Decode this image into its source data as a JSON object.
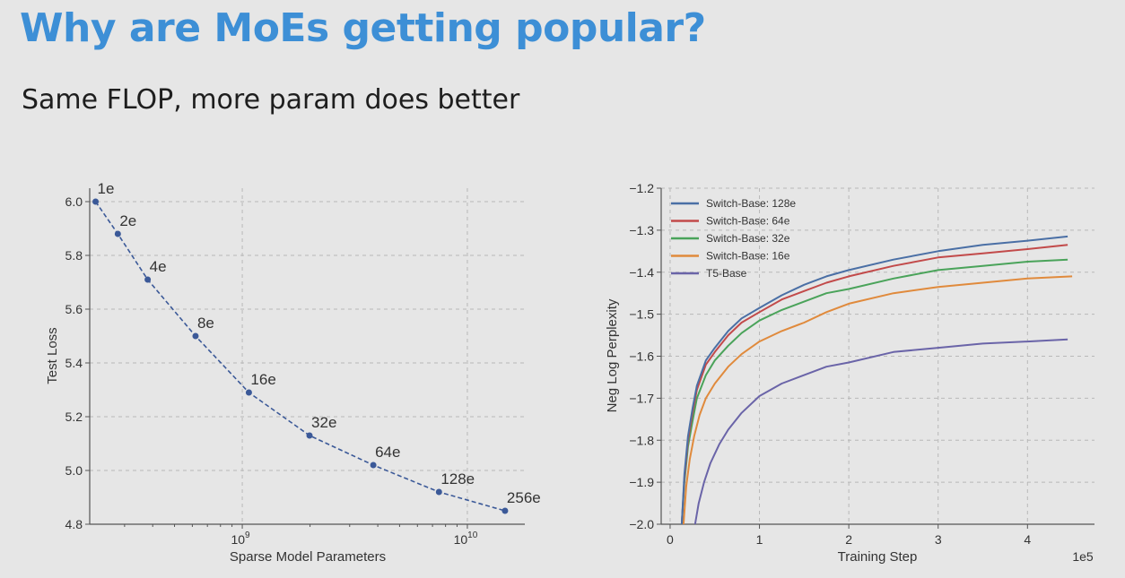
{
  "slide": {
    "title": "Why are MoEs getting popular?",
    "subtitle": "Same FLOP, more param does better"
  },
  "chart_data": [
    {
      "type": "line",
      "xlabel": "Sparse Model Parameters",
      "ylabel": "Test Loss",
      "xscale": "log",
      "xlim": [
        210000000,
        18000000000
      ],
      "ylim": [
        4.8,
        6.05
      ],
      "yticks": [
        "6.0",
        "5.8",
        "5.6",
        "5.4",
        "5.2",
        "5.0",
        "4.8"
      ],
      "xtick_labels": [
        {
          "base": "10",
          "exp": "9",
          "value": 1000000000
        },
        {
          "base": "10",
          "exp": "10",
          "value": 10000000000
        }
      ],
      "grid": true,
      "line_style": "dashed",
      "color": "#3b5998",
      "points": [
        {
          "label": "1e",
          "x": 223000000,
          "y": 6.0
        },
        {
          "label": "2e",
          "x": 280000000,
          "y": 5.88
        },
        {
          "label": "4e",
          "x": 380000000,
          "y": 5.71
        },
        {
          "label": "8e",
          "x": 620000000,
          "y": 5.5
        },
        {
          "label": "16e",
          "x": 1070000000,
          "y": 5.29
        },
        {
          "label": "32e",
          "x": 1990000000,
          "y": 5.13
        },
        {
          "label": "64e",
          "x": 3820000000,
          "y": 5.02
        },
        {
          "label": "128e",
          "x": 7480000000,
          "y": 4.92
        },
        {
          "label": "256e",
          "x": 14700000000,
          "y": 4.85
        }
      ]
    },
    {
      "type": "line",
      "xlabel": "Training Step",
      "ylabel": "Neg Log Perplexity",
      "x_multiplier_label": "1e5",
      "xlim": [
        -0.1,
        4.75
      ],
      "ylim": [
        -2.0,
        -1.2
      ],
      "xticks": [
        "0",
        "1",
        "2",
        "3",
        "4"
      ],
      "yticks": [
        "-1.2",
        "-1.3",
        "-1.4",
        "-1.5",
        "-1.6",
        "-1.7",
        "-1.8",
        "-1.9",
        "-2.0"
      ],
      "grid": true,
      "legend": "top-left",
      "series": [
        {
          "name": "Switch-Base: 128e",
          "color": "#4a6fa5",
          "x": [
            0.13,
            0.16,
            0.2,
            0.25,
            0.3,
            0.4,
            0.5,
            0.65,
            0.8,
            1.0,
            1.25,
            1.5,
            1.75,
            2.0,
            2.5,
            3.0,
            3.5,
            4.0,
            4.45
          ],
          "y": [
            -2.0,
            -1.88,
            -1.79,
            -1.725,
            -1.67,
            -1.61,
            -1.58,
            -1.54,
            -1.51,
            -1.485,
            -1.455,
            -1.43,
            -1.41,
            -1.395,
            -1.37,
            -1.35,
            -1.335,
            -1.325,
            -1.315
          ]
        },
        {
          "name": "Switch-Base: 64e",
          "color": "#c24a4a",
          "x": [
            0.13,
            0.16,
            0.2,
            0.25,
            0.3,
            0.4,
            0.5,
            0.65,
            0.8,
            1.0,
            1.25,
            1.5,
            1.75,
            2.0,
            2.5,
            3.0,
            3.5,
            4.0,
            4.45
          ],
          "y": [
            -2.0,
            -1.89,
            -1.8,
            -1.735,
            -1.68,
            -1.62,
            -1.59,
            -1.55,
            -1.52,
            -1.495,
            -1.465,
            -1.445,
            -1.425,
            -1.41,
            -1.385,
            -1.365,
            -1.355,
            -1.345,
            -1.335
          ]
        },
        {
          "name": "Switch-Base: 32e",
          "color": "#4aa35a",
          "x": [
            0.13,
            0.16,
            0.2,
            0.25,
            0.3,
            0.4,
            0.5,
            0.65,
            0.8,
            1.0,
            1.25,
            1.5,
            1.75,
            2.0,
            2.5,
            3.0,
            3.5,
            4.0,
            4.45
          ],
          "y": [
            -2.0,
            -1.9,
            -1.815,
            -1.755,
            -1.7,
            -1.645,
            -1.61,
            -1.575,
            -1.545,
            -1.515,
            -1.49,
            -1.47,
            -1.45,
            -1.44,
            -1.415,
            -1.395,
            -1.385,
            -1.375,
            -1.37
          ]
        },
        {
          "name": "Switch-Base: 16e",
          "color": "#e08a3c",
          "x": [
            0.15,
            0.18,
            0.22,
            0.27,
            0.33,
            0.4,
            0.5,
            0.65,
            0.8,
            1.0,
            1.25,
            1.5,
            1.75,
            2.0,
            2.5,
            3.0,
            3.5,
            4.0,
            4.5
          ],
          "y": [
            -2.0,
            -1.91,
            -1.845,
            -1.79,
            -1.74,
            -1.7,
            -1.665,
            -1.625,
            -1.595,
            -1.565,
            -1.54,
            -1.52,
            -1.495,
            -1.475,
            -1.45,
            -1.435,
            -1.425,
            -1.415,
            -1.41
          ]
        },
        {
          "name": "T5-Base",
          "color": "#6a64a8",
          "x": [
            0.28,
            0.32,
            0.38,
            0.45,
            0.55,
            0.65,
            0.8,
            1.0,
            1.25,
            1.5,
            1.75,
            2.0,
            2.5,
            3.0,
            3.5,
            4.0,
            4.45
          ],
          "y": [
            -2.0,
            -1.95,
            -1.9,
            -1.855,
            -1.81,
            -1.775,
            -1.735,
            -1.695,
            -1.665,
            -1.645,
            -1.625,
            -1.615,
            -1.59,
            -1.58,
            -1.57,
            -1.565,
            -1.56
          ]
        }
      ]
    }
  ]
}
